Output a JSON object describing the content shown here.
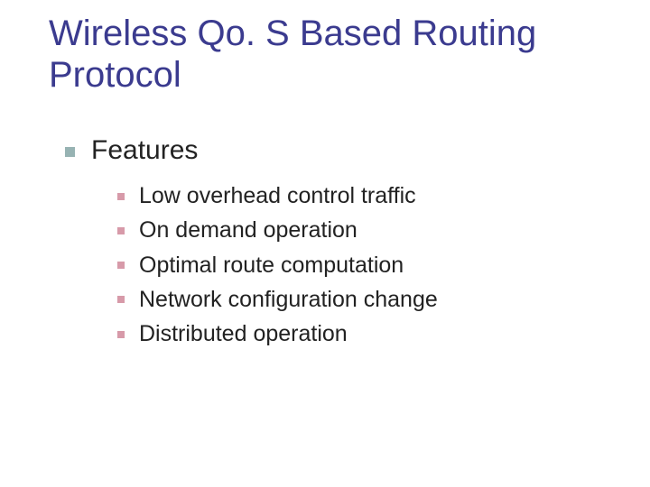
{
  "title": "Wireless Qo. S Based Routing Protocol",
  "colors": {
    "title": "#3b3b8f",
    "body_text": "#222222",
    "bullet_level1": "#97b3b3",
    "bullet_level2": "#d79aa9",
    "background": "#ffffff"
  },
  "typography": {
    "title_fontsize": 40,
    "level1_fontsize": 30,
    "level2_fontsize": 25,
    "font_family": "Verdana"
  },
  "content": {
    "level1": {
      "label": "Features",
      "items": [
        {
          "label": "Low overhead control traffic"
        },
        {
          "label": "On demand operation"
        },
        {
          "label": "Optimal route computation"
        },
        {
          "label": "Network configuration change"
        },
        {
          "label": "Distributed operation"
        }
      ]
    }
  }
}
